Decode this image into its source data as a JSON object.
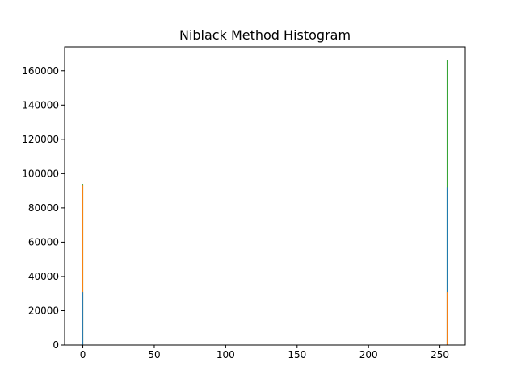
{
  "chart_data": {
    "type": "bar",
    "title": "Niblack Method Histogram",
    "xlabel": "",
    "ylabel": "",
    "xlim": [
      -12.75,
      267.75
    ],
    "ylim": [
      0,
      174000
    ],
    "grid": false,
    "x_ticks": [
      0,
      50,
      100,
      150,
      200,
      250
    ],
    "y_ticks": [
      0,
      20000,
      40000,
      60000,
      80000,
      100000,
      120000,
      140000,
      160000
    ],
    "series": [
      {
        "color": "#1f77b4",
        "points": [
          {
            "x": 0,
            "y": 31000
          },
          {
            "x": 255,
            "y": 92000
          }
        ]
      },
      {
        "color": "#ff7f0e",
        "points": [
          {
            "x": 0,
            "y": 93000
          },
          {
            "x": 255,
            "y": 31000
          }
        ]
      },
      {
        "color": "#2ca02c",
        "points": [
          {
            "x": 0,
            "y": 94000
          },
          {
            "x": 255,
            "y": 166000
          }
        ]
      }
    ]
  }
}
